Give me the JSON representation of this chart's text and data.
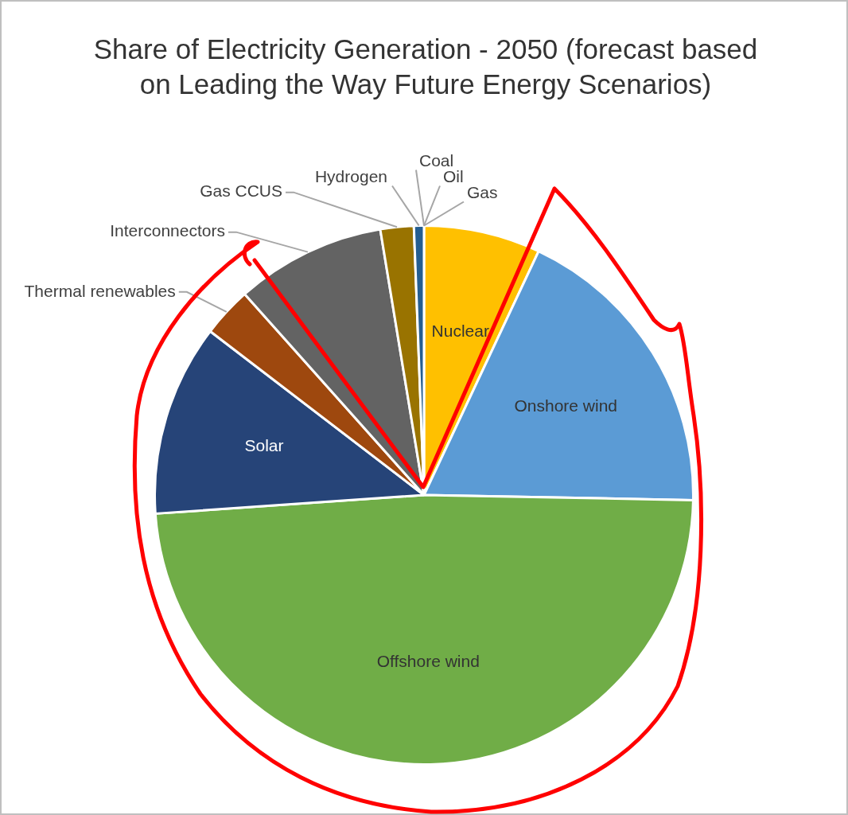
{
  "chart_data": {
    "type": "pie",
    "title": "Share of Electricity Generation - 2050 (forecast based on Leading the Way Future Energy Scenarios)",
    "categories": [
      "Nuclear",
      "Onshore wind",
      "Offshore wind",
      "Solar",
      "Thermal renewables",
      "Interconnectors",
      "Gas CCUS",
      "Hydrogen",
      "Coal",
      "Oil",
      "Gas"
    ],
    "values": [
      7,
      18.3,
      48.6,
      11.5,
      3,
      9,
      2,
      0.6,
      0,
      0,
      0
    ],
    "colors": [
      "#ffc000",
      "#5b9bd5",
      "#70ad47",
      "#264478",
      "#9e480e",
      "#636363",
      "#997300",
      "#255e91",
      "#43682b",
      "#698ed0",
      "#f1975a"
    ],
    "legend": false
  }
}
